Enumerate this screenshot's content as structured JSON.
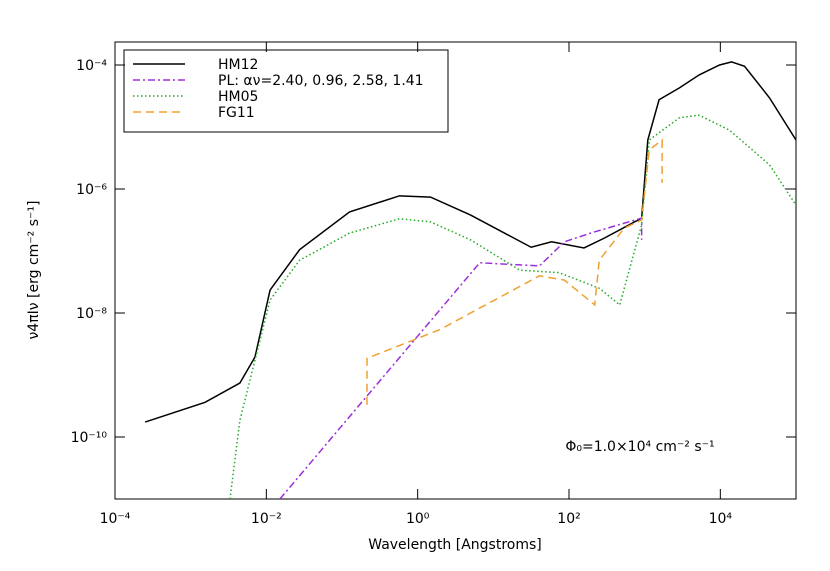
{
  "chart_data": {
    "type": "line",
    "xlabel": "Wavelength [Angstroms]",
    "ylabel": "ν4πIν [erg cm⁻² s⁻¹]",
    "annotation": "Φ₀=1.0×10⁴ cm⁻² s⁻¹",
    "xscale": "log",
    "yscale": "log",
    "xlim": [
      0.0001,
      100000
    ],
    "ylim": [
      1e-11,
      0.000235
    ],
    "xticks": [
      {
        "value": 0.0001,
        "label": "10⁻⁴"
      },
      {
        "value": 0.01,
        "label": "10⁻²"
      },
      {
        "value": 1,
        "label": "10⁰"
      },
      {
        "value": 100,
        "label": "10²"
      },
      {
        "value": 10000,
        "label": "10⁴"
      }
    ],
    "yticks": [
      {
        "value": 1e-10,
        "label": "10⁻¹⁰"
      },
      {
        "value": 1e-08,
        "label": "10⁻⁸"
      },
      {
        "value": 1e-06,
        "label": "10⁻⁶"
      },
      {
        "value": 0.0001,
        "label": "10⁻⁴"
      }
    ],
    "legend": "upper left",
    "series": [
      {
        "name": "HM12",
        "color": "#000000",
        "dash": "none",
        "x": [
          0.00025,
          0.00155,
          0.00447,
          0.00708,
          0.0112,
          0.0275,
          0.126,
          0.575,
          1.48,
          5.01,
          31.6,
          58.9,
          158,
          295,
          912,
          1100,
          1550,
          2880,
          5250,
          9770,
          14100,
          20900,
          44700,
          100000
        ],
        "values": [
          1.74e-10,
          3.63e-10,
          7.41e-10,
          1.95e-09,
          2.34e-08,
          1.05e-07,
          4.27e-07,
          7.76e-07,
          7.41e-07,
          3.8e-07,
          1.15e-07,
          1.41e-07,
          1.12e-07,
          1.62e-07,
          3.39e-07,
          6.17e-06,
          2.75e-05,
          4.27e-05,
          6.92e-05,
          0.0001,
          0.000112,
          9.55e-05,
          2.95e-05,
          6.17e-06
        ]
      },
      {
        "name": "PL: αν=2.40, 0.96, 2.58, 1.41",
        "color": "#9b30d9",
        "dash": "7,3,2,3",
        "x": [
          0.0151,
          6.61,
          40.7,
          87.1,
          219,
          912,
          912
        ],
        "values": [
          1e-11,
          6.46e-08,
          5.75e-08,
          1.41e-07,
          2.04e-07,
          3.39e-07,
          1.51e-07
        ]
      },
      {
        "name": "HM05",
        "color": "#22aa22",
        "dash": "1.5,2.5",
        "x": [
          0.00331,
          0.00447,
          0.00708,
          0.0112,
          0.0275,
          0.126,
          0.575,
          1.48,
          5.01,
          22.4,
          74.1,
          251,
          468,
          912,
          1150,
          2880,
          5250,
          13200,
          44700,
          100000
        ],
        "values": [
          1e-11,
          1.86e-10,
          1.74e-09,
          1.62e-08,
          7.08e-08,
          1.95e-07,
          3.31e-07,
          2.95e-07,
          1.51e-07,
          4.9e-08,
          4.47e-08,
          2.51e-08,
          1.35e-08,
          2.63e-07,
          6.17e-06,
          1.41e-05,
          1.55e-05,
          8.91e-06,
          2.45e-06,
          5.5e-07
        ]
      },
      {
        "name": "FG11",
        "color": "#f0a030",
        "dash": "8,5",
        "x": [
          0.214,
          0.214,
          1.95,
          40.7,
          87.1,
          219,
          251,
          537,
          912,
          1150,
          1700,
          1700
        ],
        "values": [
          3.31e-10,
          1.86e-09,
          5.37e-09,
          3.98e-08,
          3.39e-08,
          1.35e-08,
          7.08e-08,
          2.34e-07,
          3.16e-07,
          4.27e-06,
          6.17e-06,
          1.26e-06
        ]
      }
    ]
  }
}
